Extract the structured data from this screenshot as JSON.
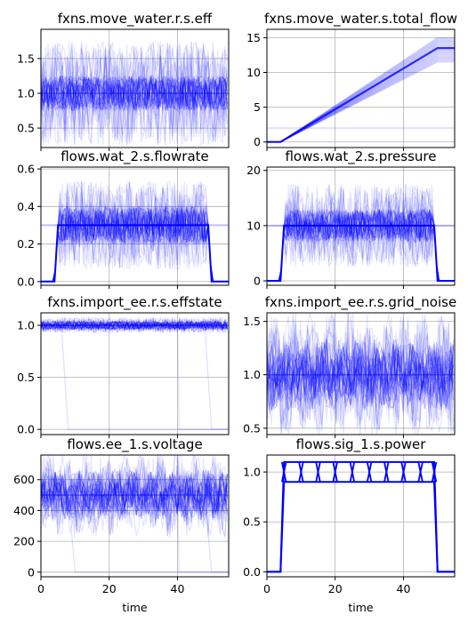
{
  "figure": {
    "xlabel": "time",
    "series_color": "#0000ff"
  },
  "chart_data": [
    {
      "type": "line",
      "title": "fxns.move_water.r.s.eff",
      "xlim": [
        0,
        55
      ],
      "ylim": [
        0.22,
        1.92
      ],
      "xticks": [
        0,
        20,
        40
      ],
      "yticks": [
        0.5,
        1.0,
        1.5
      ],
      "ytick_labels": [
        "0.5",
        "1.0",
        "1.5"
      ],
      "xtick_labels_shown": false,
      "grid": true,
      "series": [
        {
          "x": [
            0,
            5,
            10,
            15,
            20,
            25,
            30,
            35,
            40,
            45,
            50,
            55
          ],
          "y": [
            1.0,
            1.0,
            1.0,
            1.0,
            1.0,
            1.0,
            1.0,
            1.0,
            1.0,
            1.0,
            1.0,
            1.0
          ],
          "band": [
            0.35,
            1.85
          ],
          "core": [
            0.75,
            1.25
          ],
          "mode": "noise"
        }
      ]
    },
    {
      "type": "line",
      "title": "fxns.move_water.s.total_flow",
      "xlim": [
        0,
        55
      ],
      "ylim": [
        -0.8,
        16.2
      ],
      "xticks": [
        0,
        20,
        40
      ],
      "yticks": [
        0,
        5,
        10,
        15
      ],
      "ytick_labels": [
        "0",
        "5",
        "10",
        "15"
      ],
      "xtick_labels_shown": false,
      "grid": true,
      "series": [
        {
          "x": [
            0,
            4,
            50,
            55
          ],
          "y": [
            0,
            0,
            13.5,
            13.5
          ],
          "spread_end": [
            11.5,
            15.0
          ],
          "mode": "ramp"
        },
        {
          "x": [
            0,
            55
          ],
          "y": [
            2.0,
            2.0
          ],
          "mode": "flat"
        }
      ]
    },
    {
      "type": "line",
      "title": "flows.wat_2.s.flowrate",
      "xlim": [
        0,
        55
      ],
      "ylim": [
        -0.02,
        0.61
      ],
      "xticks": [
        0,
        20,
        40
      ],
      "yticks": [
        0.0,
        0.2,
        0.4,
        0.6
      ],
      "ytick_labels": [
        "0.0",
        "0.2",
        "0.4",
        "0.6"
      ],
      "xtick_labels_shown": false,
      "grid": true,
      "series": [
        {
          "x": [
            0,
            4,
            5,
            49,
            50,
            55
          ],
          "y": [
            0,
            0,
            0.3,
            0.3,
            0,
            0
          ],
          "band": [
            0.1,
            0.57
          ],
          "core": [
            0.2,
            0.4
          ],
          "mode": "pulse"
        }
      ]
    },
    {
      "type": "line",
      "title": "flows.wat_2.s.pressure",
      "xlim": [
        0,
        55
      ],
      "ylim": [
        -0.8,
        20.6
      ],
      "xticks": [
        0,
        20,
        40
      ],
      "yticks": [
        0,
        10,
        20
      ],
      "ytick_labels": [
        "0",
        "10",
        "20"
      ],
      "xtick_labels_shown": false,
      "grid": true,
      "series": [
        {
          "x": [
            0,
            4,
            5,
            49,
            50,
            55
          ],
          "y": [
            0,
            0,
            10,
            10,
            0,
            0
          ],
          "band": [
            4,
            19
          ],
          "core": [
            7,
            13
          ],
          "mode": "pulse"
        }
      ]
    },
    {
      "type": "line",
      "title": "fxns.import_ee.r.s.effstate",
      "xlim": [
        0,
        55
      ],
      "ylim": [
        -0.05,
        1.12
      ],
      "xticks": [
        0,
        20,
        40
      ],
      "yticks": [
        0.0,
        0.5,
        1.0
      ],
      "ytick_labels": [
        "0.0",
        "0.5",
        "1.0"
      ],
      "xtick_labels_shown": false,
      "grid": true,
      "series": [
        {
          "x": [
            0,
            55
          ],
          "y": [
            1.0,
            1.0
          ],
          "band": [
            0.93,
            1.07
          ],
          "core": [
            0.96,
            1.04
          ],
          "mode": "noise"
        },
        {
          "x": [
            0,
            6,
            8,
            55
          ],
          "y": [
            1,
            1,
            0,
            0
          ],
          "mode": "fault"
        },
        {
          "x": [
            0,
            40,
            40.5,
            55
          ],
          "y": [
            1,
            1,
            0,
            0
          ],
          "mode": "fault"
        },
        {
          "x": [
            0,
            48,
            50,
            55
          ],
          "y": [
            1,
            1,
            0,
            0
          ],
          "mode": "fault"
        }
      ]
    },
    {
      "type": "line",
      "title": "fxns.import_ee.r.s.grid_noise",
      "xlim": [
        0,
        55
      ],
      "ylim": [
        0.44,
        1.58
      ],
      "xticks": [
        0,
        20,
        40
      ],
      "yticks": [
        0.5,
        1.0,
        1.5
      ],
      "ytick_labels": [
        "0.5",
        "1.0",
        "1.5"
      ],
      "xtick_labels_shown": false,
      "grid": true,
      "series": [
        {
          "x": [
            0,
            55
          ],
          "y": [
            1.0,
            1.0
          ],
          "band": [
            0.55,
            1.5
          ],
          "core": [
            0.8,
            1.2
          ],
          "mode": "wave"
        }
      ]
    },
    {
      "type": "line",
      "title": "flows.ee_1.s.voltage",
      "xlim": [
        0,
        55
      ],
      "ylim": [
        -30,
        760
      ],
      "xticks": [
        0,
        20,
        40
      ],
      "yticks": [
        0,
        200,
        400,
        600
      ],
      "ytick_labels": [
        "0",
        "200",
        "400",
        "600"
      ],
      "xtick_labels": [
        "0",
        "20",
        "40"
      ],
      "xtick_labels_shown": true,
      "grid": true,
      "series": [
        {
          "x": [
            0,
            55
          ],
          "y": [
            500,
            500
          ],
          "band": [
            270,
            700
          ],
          "core": [
            400,
            600
          ],
          "mode": "wave"
        },
        {
          "x": [
            0,
            8,
            10,
            55
          ],
          "y": [
            500,
            500,
            0,
            0
          ],
          "mode": "fault"
        },
        {
          "x": [
            0,
            40,
            40.5,
            55
          ],
          "y": [
            500,
            500,
            0,
            0
          ],
          "mode": "fault"
        },
        {
          "x": [
            0,
            48,
            50,
            55
          ],
          "y": [
            500,
            500,
            0,
            0
          ],
          "mode": "fault"
        }
      ]
    },
    {
      "type": "line",
      "title": "flows.sig_1.s.power",
      "xlim": [
        0,
        55
      ],
      "ylim": [
        -0.05,
        1.17
      ],
      "xticks": [
        0,
        20,
        40
      ],
      "yticks": [
        0.0,
        0.5,
        1.0
      ],
      "ytick_labels": [
        "0.0",
        "0.5",
        "1.0"
      ],
      "xtick_labels": [
        "0",
        "20",
        "40"
      ],
      "xtick_labels_shown": true,
      "grid": true,
      "series": [
        {
          "x": [
            0,
            4,
            5,
            49,
            50,
            55
          ],
          "y": [
            0,
            0,
            1.1,
            1.1,
            0,
            0
          ],
          "mode": "solid"
        },
        {
          "x": [
            0,
            4,
            5,
            49,
            50,
            55
          ],
          "y": [
            0,
            0,
            0.9,
            0.9,
            0,
            0
          ],
          "mode": "solid"
        },
        {
          "x": [
            5,
            10,
            15,
            20,
            25,
            30,
            35,
            40,
            45,
            49
          ],
          "y_high": 1.1,
          "y_low": 0.9,
          "mode": "switch"
        }
      ]
    }
  ]
}
